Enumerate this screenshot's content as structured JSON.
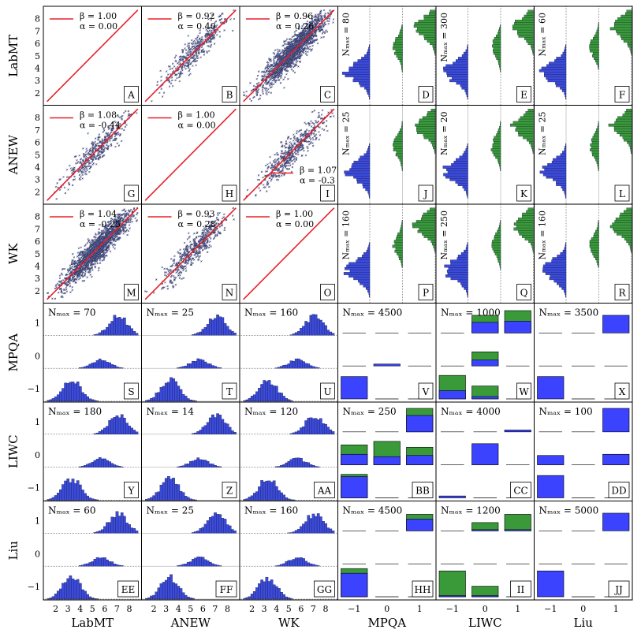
{
  "figure": {
    "row_labels": [
      "LabMT",
      "ANEW",
      "WK",
      "MPQA",
      "LIWC",
      "Liu"
    ],
    "col_labels": [
      "LabMT",
      "ANEW",
      "WK",
      "MPQA",
      "LIWC",
      "Liu"
    ],
    "panel_letters": [
      [
        "A",
        "B",
        "C",
        "D",
        "E",
        "F"
      ],
      [
        "G",
        "H",
        "I",
        "J",
        "K",
        "L"
      ],
      [
        "M",
        "N",
        "O",
        "P",
        "Q",
        "R"
      ],
      [
        "S",
        "T",
        "U",
        "V",
        "W",
        "X"
      ],
      [
        "Y",
        "Z",
        "AA",
        "BB",
        "CC",
        "DD"
      ],
      [
        "EE",
        "FF",
        "GG",
        "HH",
        "II",
        "JJ"
      ]
    ],
    "colors": {
      "scatter_point": "#5b6bd6",
      "fit_line": "#e8202a",
      "hist_fill": "#3c4bd9",
      "hist_edge": "#0b0f2e",
      "bar_blue": "#3b43ff",
      "bar_green": "#3a9a3a"
    }
  },
  "chart_data": {
    "type": "scatter-histogram-matrix",
    "x_ticks_numeric": [
      "2",
      "3",
      "4",
      "5",
      "6",
      "7",
      "8"
    ],
    "y_ticks_numeric": [
      "2",
      "3",
      "4",
      "5",
      "6",
      "7",
      "8"
    ],
    "x_ticks_binary": [
      "−1",
      "0",
      "1"
    ],
    "y_ticks_binary": [
      "1",
      "0",
      "−1"
    ],
    "xlim": [
      1,
      9
    ],
    "ylim": [
      1,
      9
    ],
    "fits": [
      {
        "row": "LabMT",
        "col": "LabMT",
        "beta": "β = 1.00",
        "alpha": "α = 0.00"
      },
      {
        "row": "LabMT",
        "col": "ANEW",
        "beta": "β = 0.92",
        "alpha": "α = 0.40"
      },
      {
        "row": "LabMT",
        "col": "WK",
        "beta": "β = 0.96",
        "alpha": "α = 0.26"
      },
      {
        "row": "ANEW",
        "col": "LabMT",
        "beta": "β = 1.08",
        "alpha": "α = -0.44"
      },
      {
        "row": "ANEW",
        "col": "ANEW",
        "beta": "β = 1.00",
        "alpha": "α = 0.00"
      },
      {
        "row": "ANEW",
        "col": "WK",
        "beta": "β = 1.07",
        "alpha": "α = -0.3"
      },
      {
        "row": "WK",
        "col": "LabMT",
        "beta": "β = 1.04",
        "alpha": "α = -0.25"
      },
      {
        "row": "WK",
        "col": "ANEW",
        "beta": "β = 0.93",
        "alpha": "α = 0.28"
      },
      {
        "row": "WK",
        "col": "WK",
        "beta": "β = 1.00",
        "alpha": "α = 0.00"
      }
    ],
    "nmax_labels": [
      {
        "row": "LabMT",
        "col": "MPQA",
        "text": "N_max = 80"
      },
      {
        "row": "LabMT",
        "col": "LIWC",
        "text": "N_max = 300"
      },
      {
        "row": "LabMT",
        "col": "Liu",
        "text": "N_max = 60"
      },
      {
        "row": "ANEW",
        "col": "MPQA",
        "text": "N_max = 25"
      },
      {
        "row": "ANEW",
        "col": "LIWC",
        "text": "N_max = 20"
      },
      {
        "row": "ANEW",
        "col": "Liu",
        "text": "N_max = 25"
      },
      {
        "row": "WK",
        "col": "MPQA",
        "text": "N_max = 160"
      },
      {
        "row": "WK",
        "col": "LIWC",
        "text": "N_max = 250"
      },
      {
        "row": "WK",
        "col": "Liu",
        "text": "N_max = 160"
      },
      {
        "row": "MPQA",
        "col": "LabMT",
        "text": "N_max = 70"
      },
      {
        "row": "MPQA",
        "col": "ANEW",
        "text": "N_max = 25"
      },
      {
        "row": "MPQA",
        "col": "WK",
        "text": "N_max = 160"
      },
      {
        "row": "MPQA",
        "col": "MPQA",
        "text": "N_max = 4500"
      },
      {
        "row": "MPQA",
        "col": "LIWC",
        "text": "N_max = 1000"
      },
      {
        "row": "MPQA",
        "col": "Liu",
        "text": "N_max = 3500"
      },
      {
        "row": "LIWC",
        "col": "LabMT",
        "text": "N_max = 180"
      },
      {
        "row": "LIWC",
        "col": "ANEW",
        "text": "N_max = 14"
      },
      {
        "row": "LIWC",
        "col": "WK",
        "text": "N_max = 120"
      },
      {
        "row": "LIWC",
        "col": "MPQA",
        "text": "N_max = 250"
      },
      {
        "row": "LIWC",
        "col": "LIWC",
        "text": "N_max = 4000"
      },
      {
        "row": "LIWC",
        "col": "Liu",
        "text": "N_max = 100"
      },
      {
        "row": "Liu",
        "col": "LabMT",
        "text": "N_max = 60"
      },
      {
        "row": "Liu",
        "col": "ANEW",
        "text": "N_max = 25"
      },
      {
        "row": "Liu",
        "col": "WK",
        "text": "N_max = 160"
      },
      {
        "row": "Liu",
        "col": "MPQA",
        "text": "N_max = 4500"
      },
      {
        "row": "Liu",
        "col": "LIWC",
        "text": "N_max = 1200"
      },
      {
        "row": "Liu",
        "col": "Liu",
        "text": "N_max = 5000"
      }
    ],
    "binary_bars": [
      {
        "row": "MPQA",
        "col": "MPQA",
        "cells": [
          [
            0,
            0,
            0
          ],
          [
            0,
            0.08,
            0
          ],
          [
            0.95,
            0,
            0
          ]
        ],
        "green": [
          [
            0,
            0,
            0
          ],
          [
            0,
            0,
            0
          ],
          [
            0,
            0,
            0
          ]
        ]
      },
      {
        "row": "MPQA",
        "col": "LIWC",
        "cells": [
          [
            0,
            0.45,
            0.5
          ],
          [
            0,
            0.25,
            0
          ],
          [
            0.35,
            0.1,
            0
          ]
        ],
        "green": [
          [
            0,
            0.75,
            0.95
          ],
          [
            0,
            0.6,
            0
          ],
          [
            1,
            0.55,
            0
          ]
        ]
      },
      {
        "row": "MPQA",
        "col": "Liu",
        "cells": [
          [
            0,
            0,
            0.75
          ],
          [
            0,
            0,
            0
          ],
          [
            0.95,
            0,
            0
          ]
        ],
        "green": [
          [
            0,
            0,
            0
          ],
          [
            0,
            0,
            0
          ],
          [
            0,
            0,
            0
          ]
        ]
      },
      {
        "row": "LIWC",
        "col": "MPQA",
        "cells": [
          [
            0,
            0,
            0.7
          ],
          [
            0.45,
            0.35,
            0.4
          ],
          [
            0.9,
            0,
            0
          ]
        ],
        "green": [
          [
            0,
            0,
            1
          ],
          [
            0.85,
            1,
            0.75
          ],
          [
            1,
            0,
            0
          ]
        ]
      },
      {
        "row": "LIWC",
        "col": "LIWC",
        "cells": [
          [
            0,
            0,
            0.08
          ],
          [
            0,
            0.9,
            0
          ],
          [
            0.08,
            0,
            0
          ]
        ],
        "green": [
          [
            0,
            0,
            0
          ],
          [
            0,
            0,
            0
          ],
          [
            0,
            0,
            0
          ]
        ]
      },
      {
        "row": "LIWC",
        "col": "Liu",
        "cells": [
          [
            0,
            0,
            1
          ],
          [
            0.4,
            0,
            0.45
          ],
          [
            0.95,
            0,
            0
          ]
        ],
        "green": [
          [
            0,
            0,
            0
          ],
          [
            0,
            0,
            0
          ],
          [
            0,
            0,
            0
          ]
        ]
      },
      {
        "row": "Liu",
        "col": "MPQA",
        "cells": [
          [
            0,
            0,
            0.5
          ],
          [
            0,
            0,
            0
          ],
          [
            1,
            0,
            0
          ]
        ],
        "green": [
          [
            0,
            0,
            0.7
          ],
          [
            0,
            0,
            0
          ],
          [
            1.2,
            0,
            0
          ]
        ]
      },
      {
        "row": "Liu",
        "col": "LIWC",
        "cells": [
          [
            0,
            0.05,
            0.05
          ],
          [
            0,
            0,
            0
          ],
          [
            0.05,
            0.05,
            0
          ]
        ],
        "green": [
          [
            0,
            0.35,
            0.7
          ],
          [
            0,
            0,
            0
          ],
          [
            1.1,
            0.45,
            0
          ]
        ]
      },
      {
        "row": "Liu",
        "col": "Liu",
        "cells": [
          [
            0,
            0,
            0.75
          ],
          [
            0,
            0,
            0
          ],
          [
            1.1,
            0,
            0
          ]
        ],
        "green": [
          [
            0,
            0,
            0
          ],
          [
            0,
            0,
            0
          ],
          [
            0,
            0,
            0
          ]
        ]
      }
    ]
  }
}
